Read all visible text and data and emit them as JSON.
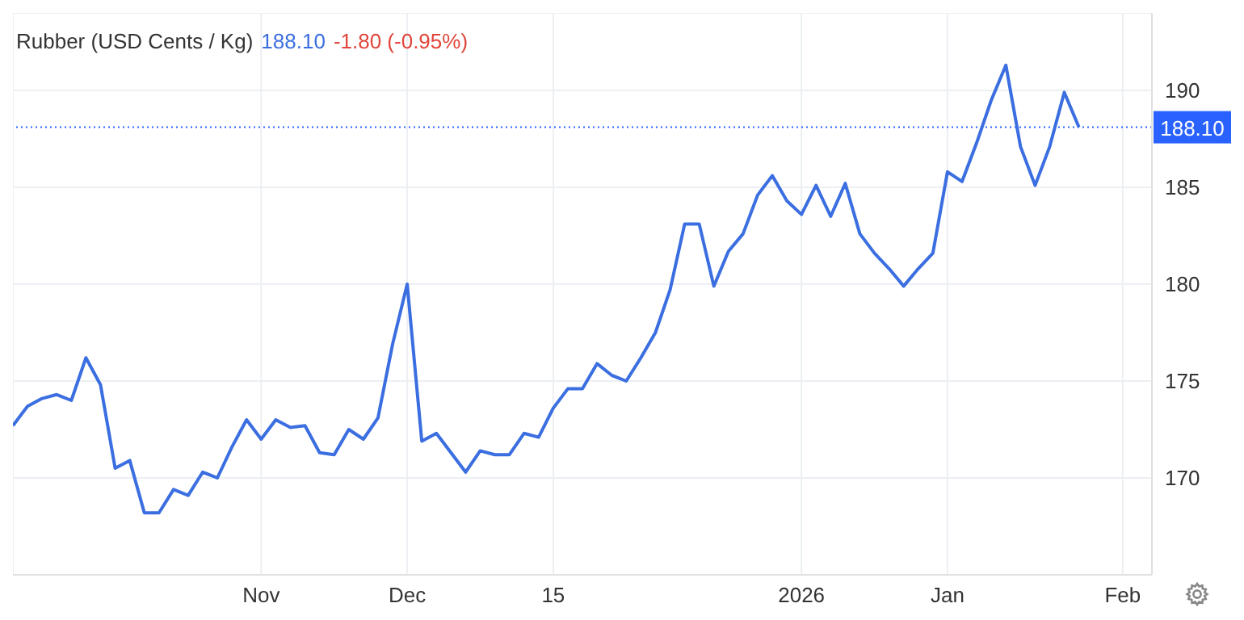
{
  "chart_data": {
    "type": "line",
    "title": "Rubber (USD Cents / Kg)",
    "annotations": [
      "188.10",
      "-1.80 (-0.95%)"
    ],
    "categories": [
      null,
      null,
      null,
      null,
      null,
      null,
      null,
      null,
      null,
      null,
      null,
      null,
      null,
      null,
      null,
      null,
      null,
      "Nov",
      null,
      null,
      null,
      null,
      null,
      null,
      null,
      null,
      null,
      "Dec",
      null,
      null,
      null,
      null,
      null,
      null,
      null,
      null,
      null,
      "15",
      null,
      null,
      null,
      null,
      null,
      null,
      null,
      null,
      null,
      null,
      null,
      null,
      null,
      null,
      null,
      null,
      "2026",
      null,
      null,
      null,
      null,
      null,
      null,
      null,
      null,
      null,
      "Jan",
      null,
      null,
      null,
      null,
      null,
      null,
      null,
      null,
      null,
      null,
      null,
      "Feb",
      null,
      null
    ],
    "series": [
      {
        "color": "#3b6ee0",
        "values": [
          172.7,
          173.7,
          174.1,
          174.3,
          174.0,
          176.2,
          174.8,
          170.5,
          170.9,
          168.2,
          168.2,
          169.4,
          169.1,
          170.3,
          170.0,
          171.6,
          173.0,
          172.0,
          173.0,
          172.6,
          172.7,
          171.3,
          171.2,
          172.5,
          172.0,
          173.1,
          176.9,
          180.0,
          171.9,
          172.3,
          171.3,
          170.3,
          171.4,
          171.2,
          171.2,
          172.3,
          172.1,
          173.6,
          174.6,
          174.6,
          175.9,
          175.3,
          175.0,
          176.2,
          177.5,
          179.7,
          183.1,
          183.1,
          179.9,
          181.7,
          182.6,
          184.6,
          185.6,
          184.3,
          183.6,
          185.1,
          183.5,
          185.2,
          182.6,
          181.6,
          180.8,
          179.9,
          180.8,
          181.6,
          185.8,
          185.3,
          187.3,
          189.5,
          191.3,
          187.1,
          185.1,
          187.1,
          189.9,
          188.1,
          null,
          null,
          null,
          null,
          null
        ]
      }
    ],
    "ylim": [
      165,
      194
    ],
    "yticks": [
      170,
      175,
      180,
      185,
      190
    ],
    "grid": true,
    "marker": "none",
    "line_style": "solid",
    "ref_lines": [
      {
        "axis": "y",
        "value": 188.1,
        "label": "188.10",
        "color": "#2962ff",
        "line_style": "dotted"
      }
    ]
  }
}
